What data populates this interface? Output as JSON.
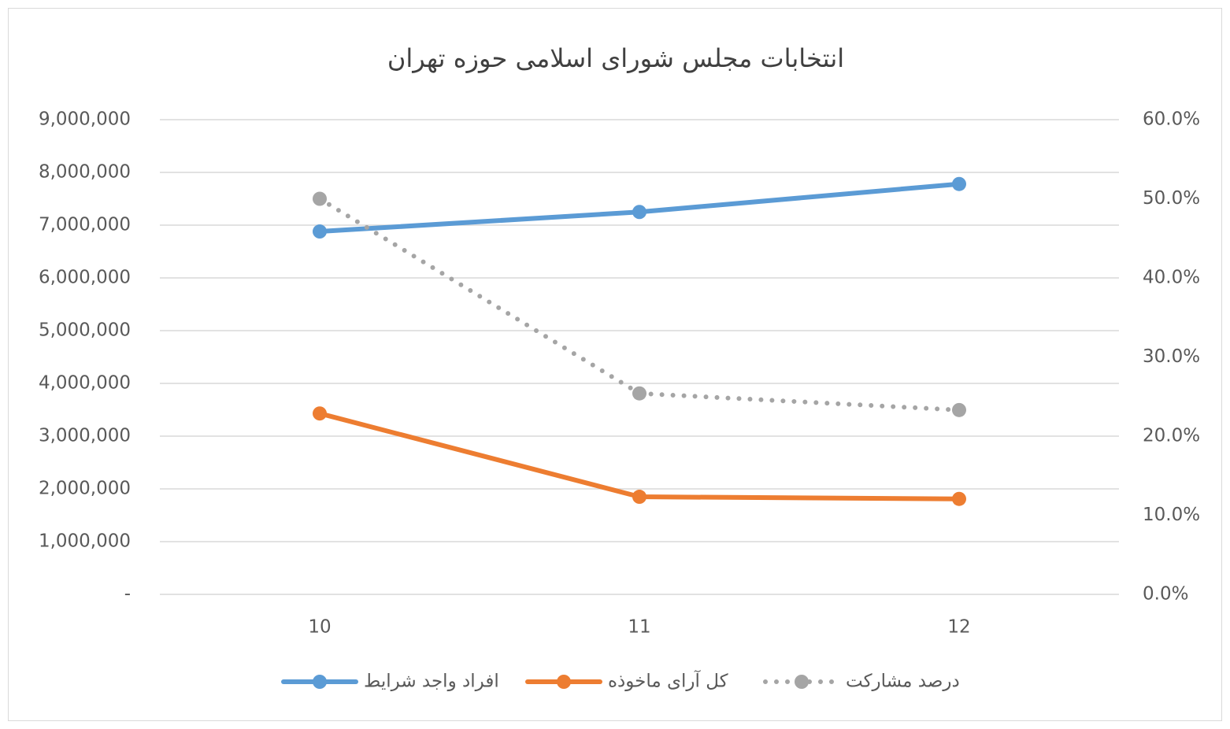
{
  "chart_data": {
    "type": "line",
    "title": "انتخابات مجلس شورای اسلامی حوزه تهران",
    "categories": [
      "10",
      "11",
      "12"
    ],
    "series": [
      {
        "name": "افراد واجد شرایط",
        "color": "#5b9bd5",
        "values": [
          6880000,
          7250000,
          7780000
        ]
      },
      {
        "name": "کل آرای ماخوذه",
        "color": "#ed7d31",
        "values": [
          3430000,
          1850000,
          1810000
        ]
      },
      {
        "name": "درصد مشارکت",
        "color": "#a5a5a5",
        "values": [
          50.0,
          25.4,
          23.3
        ],
        "axis": "y2",
        "line_style": "dotted"
      }
    ],
    "ylim": [
      0,
      9000000
    ],
    "yticks": [
      {
        "value": 0,
        "label": "-"
      },
      {
        "value": 1000000,
        "label": "1,000,000"
      },
      {
        "value": 2000000,
        "label": "2,000,000"
      },
      {
        "value": 3000000,
        "label": "3,000,000"
      },
      {
        "value": 4000000,
        "label": "4,000,000"
      },
      {
        "value": 5000000,
        "label": "5,000,000"
      },
      {
        "value": 6000000,
        "label": "6,000,000"
      },
      {
        "value": 7000000,
        "label": "7,000,000"
      },
      {
        "value": 8000000,
        "label": "8,000,000"
      },
      {
        "value": 9000000,
        "label": "9,000,000"
      }
    ],
    "y2lim": [
      0,
      60
    ],
    "y2ticks": [
      {
        "value": 0,
        "label": "0.0%"
      },
      {
        "value": 10,
        "label": "10.0%"
      },
      {
        "value": 20,
        "label": "20.0%"
      },
      {
        "value": 30,
        "label": "30.0%"
      },
      {
        "value": 40,
        "label": "40.0%"
      },
      {
        "value": 50,
        "label": "50.0%"
      },
      {
        "value": 60,
        "label": "60.0%"
      }
    ],
    "grid": true,
    "legend": "bottom"
  }
}
